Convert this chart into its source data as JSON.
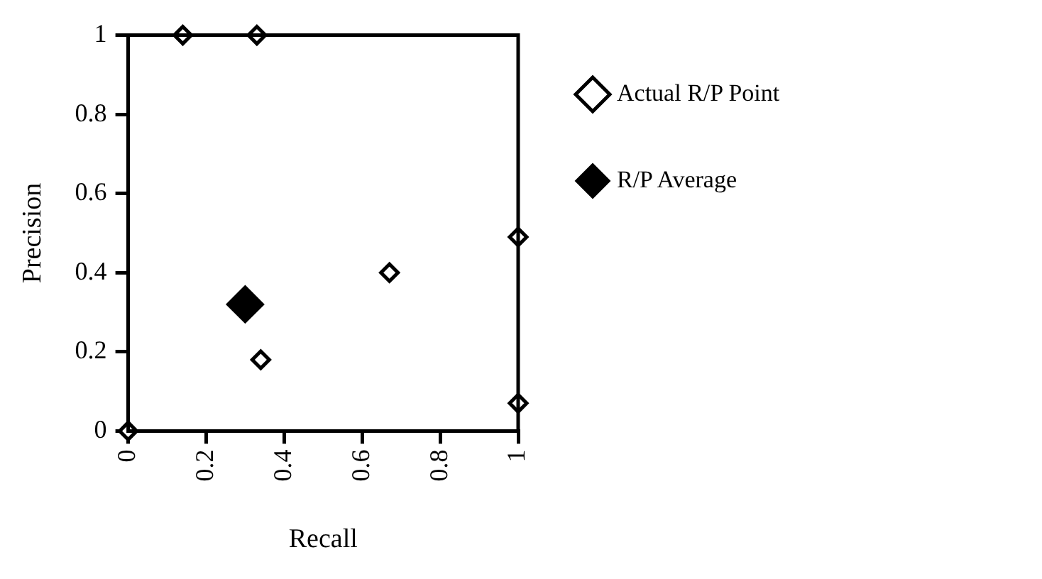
{
  "chart_data": {
    "type": "scatter",
    "xlabel": "Recall",
    "ylabel": "Precision",
    "series": [
      {
        "name": "Actual R/P Point",
        "color": "#000000",
        "x": [
          0,
          0.14,
          0.33,
          0.34,
          0.67,
          1,
          1
        ],
        "values": [
          0,
          1,
          1,
          0.18,
          0.4,
          0.49,
          0.07
        ]
      },
      {
        "name": "R/P Average",
        "color": "#000000",
        "x": [
          0.3
        ],
        "values": [
          0.32
        ]
      }
    ],
    "xlim": [
      0,
      1
    ],
    "xticks": [
      0,
      0.2,
      0.4,
      0.6,
      0.8,
      1
    ],
    "ylim": [
      0,
      1
    ],
    "yticks": [
      0,
      0.2,
      0.4,
      0.6,
      0.8,
      1
    ],
    "grid": false,
    "legend": "right",
    "marker": "diamond"
  }
}
